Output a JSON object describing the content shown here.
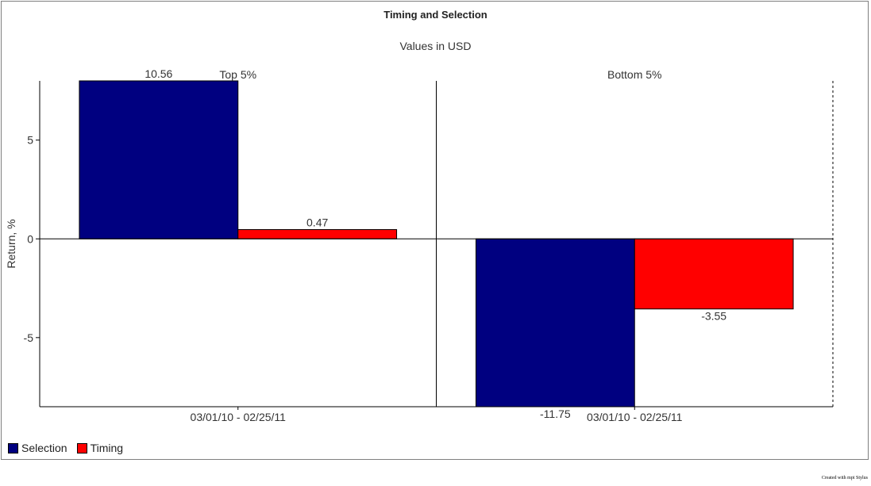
{
  "title": "Timing and Selection",
  "subtitle": "Values in USD",
  "credit": "Created with mpi Stylus",
  "colors": {
    "Selection": "#000080",
    "Timing": "#ff0000"
  },
  "chart_data": {
    "type": "bar",
    "title": "Timing and Selection",
    "subtitle": "Values in USD",
    "ylabel": "Return, %",
    "ylim": [
      -8.5,
      8
    ],
    "yticks": [
      5,
      0,
      -5
    ],
    "grid": false,
    "legend_position": "bottom-left",
    "panels": [
      {
        "name": "Top 5%",
        "category": "03/01/10 - 02/25/11",
        "series": [
          {
            "name": "Selection",
            "value": 10.56,
            "label": "10.56"
          },
          {
            "name": "Timing",
            "value": 0.47,
            "label": "0.47"
          }
        ]
      },
      {
        "name": "Bottom 5%",
        "category": "03/01/10 - 02/25/11",
        "series": [
          {
            "name": "Selection",
            "value": -11.75,
            "label": "-11.75"
          },
          {
            "name": "Timing",
            "value": -3.55,
            "label": "-3.55"
          }
        ]
      }
    ]
  },
  "legend": [
    {
      "name": "Selection"
    },
    {
      "name": "Timing"
    }
  ]
}
